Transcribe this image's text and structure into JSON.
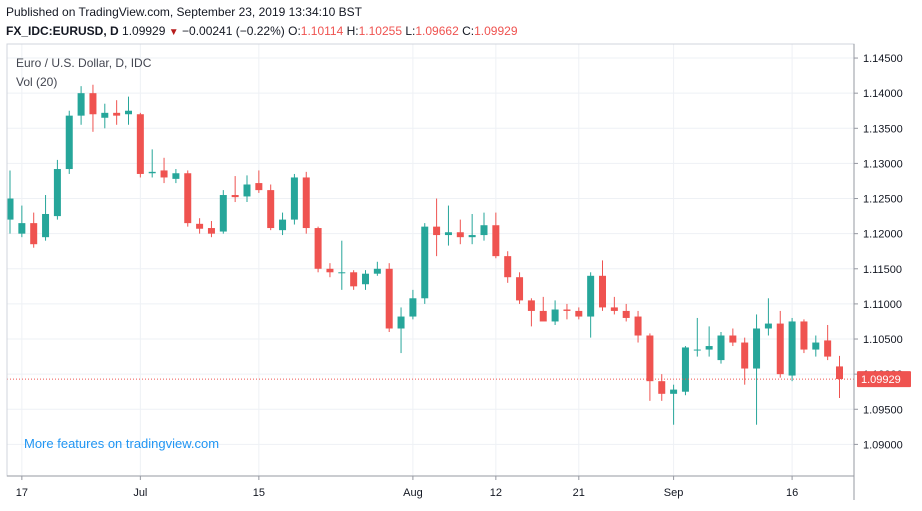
{
  "header": {
    "published": "Published on TradingView.com, September 23, 2019 13:34:10 BST",
    "symbol": "FX_IDC:EURUSD, D",
    "last": "1.09929",
    "change": "−0.00241 (−0.22%)",
    "o_label": "O:",
    "o_val": "1.10114",
    "h_label": "H:",
    "h_val": "1.10255",
    "l_label": "L:",
    "l_val": "1.09662",
    "c_label": "C:",
    "c_val": "1.09929"
  },
  "legend": {
    "title": "Euro / U.S. Dollar, D, IDC",
    "volume": "Vol (20)"
  },
  "promo": "More features on tradingview.com",
  "colors": {
    "up": "#26a69a",
    "down": "#ef5350",
    "grid": "#eef1f5",
    "axis_text": "#131722",
    "price_line": "#ef5350"
  },
  "chart_data": {
    "type": "candlestick",
    "title": "Euro / U.S. Dollar, D, IDC",
    "ylim": [
      1.0855,
      1.147
    ],
    "y_ticks": [
      "1.14500",
      "1.14000",
      "1.13500",
      "1.13000",
      "1.12500",
      "1.12000",
      "1.11500",
      "1.11000",
      "1.10500",
      "1.10000",
      "1.09500",
      "1.09000"
    ],
    "x_ticks": [
      {
        "label": "17",
        "index": 1
      },
      {
        "label": "Jul",
        "index": 11
      },
      {
        "label": "15",
        "index": 21
      },
      {
        "label": "Aug",
        "index": 34
      },
      {
        "label": "12",
        "index": 41
      },
      {
        "label": "21",
        "index": 48
      },
      {
        "label": "Sep",
        "index": 56
      },
      {
        "label": "16",
        "index": 66
      }
    ],
    "last_price": "1.09929",
    "last_value": 1.09929,
    "candles": [
      {
        "o": 1.122,
        "h": 1.129,
        "l": 1.12,
        "c": 1.125
      },
      {
        "o": 1.12,
        "h": 1.124,
        "l": 1.1195,
        "c": 1.1215
      },
      {
        "o": 1.1215,
        "h": 1.123,
        "l": 1.118,
        "c": 1.1185
      },
      {
        "o": 1.1195,
        "h": 1.1255,
        "l": 1.119,
        "c": 1.1228
      },
      {
        "o": 1.1225,
        "h": 1.1305,
        "l": 1.122,
        "c": 1.1292
      },
      {
        "o": 1.1292,
        "h": 1.1375,
        "l": 1.1285,
        "c": 1.1368
      },
      {
        "o": 1.1368,
        "h": 1.141,
        "l": 1.1355,
        "c": 1.14
      },
      {
        "o": 1.14,
        "h": 1.1412,
        "l": 1.1345,
        "c": 1.137
      },
      {
        "o": 1.1365,
        "h": 1.1385,
        "l": 1.135,
        "c": 1.1372
      },
      {
        "o": 1.1372,
        "h": 1.139,
        "l": 1.1355,
        "c": 1.1368
      },
      {
        "o": 1.137,
        "h": 1.1395,
        "l": 1.1355,
        "c": 1.1375
      },
      {
        "o": 1.137,
        "h": 1.1372,
        "l": 1.128,
        "c": 1.1285
      },
      {
        "o": 1.1286,
        "h": 1.132,
        "l": 1.128,
        "c": 1.1288
      },
      {
        "o": 1.129,
        "h": 1.1308,
        "l": 1.1272,
        "c": 1.128
      },
      {
        "o": 1.1278,
        "h": 1.1292,
        "l": 1.1272,
        "c": 1.1286
      },
      {
        "o": 1.1286,
        "h": 1.129,
        "l": 1.121,
        "c": 1.1215
      },
      {
        "o": 1.1214,
        "h": 1.1222,
        "l": 1.12,
        "c": 1.1207
      },
      {
        "o": 1.1208,
        "h": 1.1218,
        "l": 1.1195,
        "c": 1.12
      },
      {
        "o": 1.1203,
        "h": 1.1262,
        "l": 1.12,
        "c": 1.1255
      },
      {
        "o": 1.1255,
        "h": 1.1282,
        "l": 1.1245,
        "c": 1.1252
      },
      {
        "o": 1.1253,
        "h": 1.1283,
        "l": 1.1245,
        "c": 1.127
      },
      {
        "o": 1.1272,
        "h": 1.129,
        "l": 1.1258,
        "c": 1.1262
      },
      {
        "o": 1.1262,
        "h": 1.127,
        "l": 1.1205,
        "c": 1.1208
      },
      {
        "o": 1.1205,
        "h": 1.123,
        "l": 1.1198,
        "c": 1.122
      },
      {
        "o": 1.122,
        "h": 1.1285,
        "l": 1.1213,
        "c": 1.128
      },
      {
        "o": 1.128,
        "h": 1.1288,
        "l": 1.12,
        "c": 1.1208
      },
      {
        "o": 1.1208,
        "h": 1.121,
        "l": 1.1145,
        "c": 1.115
      },
      {
        "o": 1.115,
        "h": 1.1158,
        "l": 1.1138,
        "c": 1.1145
      },
      {
        "o": 1.1145,
        "h": 1.119,
        "l": 1.112,
        "c": 1.1145
      },
      {
        "o": 1.1145,
        "h": 1.1148,
        "l": 1.112,
        "c": 1.1125
      },
      {
        "o": 1.1128,
        "h": 1.1148,
        "l": 1.112,
        "c": 1.1143
      },
      {
        "o": 1.1143,
        "h": 1.116,
        "l": 1.114,
        "c": 1.115
      },
      {
        "o": 1.115,
        "h": 1.1158,
        "l": 1.106,
        "c": 1.1065
      },
      {
        "o": 1.1065,
        "h": 1.1095,
        "l": 1.103,
        "c": 1.1082
      },
      {
        "o": 1.1082,
        "h": 1.112,
        "l": 1.1078,
        "c": 1.1108
      },
      {
        "o": 1.1108,
        "h": 1.1215,
        "l": 1.11,
        "c": 1.121
      },
      {
        "o": 1.121,
        "h": 1.125,
        "l": 1.1168,
        "c": 1.1198
      },
      {
        "o": 1.1198,
        "h": 1.124,
        "l": 1.1183,
        "c": 1.1202
      },
      {
        "o": 1.1202,
        "h": 1.122,
        "l": 1.1185,
        "c": 1.1195
      },
      {
        "o": 1.1195,
        "h": 1.1228,
        "l": 1.1185,
        "c": 1.1198
      },
      {
        "o": 1.1198,
        "h": 1.123,
        "l": 1.119,
        "c": 1.1212
      },
      {
        "o": 1.1212,
        "h": 1.123,
        "l": 1.1165,
        "c": 1.1168
      },
      {
        "o": 1.1168,
        "h": 1.1175,
        "l": 1.113,
        "c": 1.1138
      },
      {
        "o": 1.1138,
        "h": 1.1145,
        "l": 1.11,
        "c": 1.1105
      },
      {
        "o": 1.1105,
        "h": 1.1108,
        "l": 1.1068,
        "c": 1.109
      },
      {
        "o": 1.109,
        "h": 1.111,
        "l": 1.108,
        "c": 1.1075
      },
      {
        "o": 1.1075,
        "h": 1.1105,
        "l": 1.107,
        "c": 1.1092
      },
      {
        "o": 1.1092,
        "h": 1.11,
        "l": 1.1078,
        "c": 1.109
      },
      {
        "o": 1.109,
        "h": 1.1095,
        "l": 1.1078,
        "c": 1.1082
      },
      {
        "o": 1.1082,
        "h": 1.1145,
        "l": 1.1052,
        "c": 1.114
      },
      {
        "o": 1.114,
        "h": 1.1162,
        "l": 1.109,
        "c": 1.1095
      },
      {
        "o": 1.1095,
        "h": 1.111,
        "l": 1.1085,
        "c": 1.109
      },
      {
        "o": 1.109,
        "h": 1.11,
        "l": 1.1075,
        "c": 1.108
      },
      {
        "o": 1.1082,
        "h": 1.109,
        "l": 1.1045,
        "c": 1.1055
      },
      {
        "o": 1.1055,
        "h": 1.1058,
        "l": 1.0962,
        "c": 1.099
      },
      {
        "o": 1.099,
        "h": 1.1,
        "l": 1.0962,
        "c": 1.0972
      },
      {
        "o": 1.0972,
        "h": 1.0985,
        "l": 1.0928,
        "c": 1.0978
      },
      {
        "o": 1.0975,
        "h": 1.104,
        "l": 1.097,
        "c": 1.1038
      },
      {
        "o": 1.1035,
        "h": 1.108,
        "l": 1.1025,
        "c": 1.1035
      },
      {
        "o": 1.1035,
        "h": 1.1068,
        "l": 1.1025,
        "c": 1.104
      },
      {
        "o": 1.102,
        "h": 1.106,
        "l": 1.1015,
        "c": 1.1055
      },
      {
        "o": 1.1055,
        "h": 1.1065,
        "l": 1.104,
        "c": 1.1045
      },
      {
        "o": 1.1045,
        "h": 1.1052,
        "l": 1.0985,
        "c": 1.1008
      },
      {
        "o": 1.1008,
        "h": 1.1085,
        "l": 1.0928,
        "c": 1.1065
      },
      {
        "o": 1.1065,
        "h": 1.1108,
        "l": 1.1055,
        "c": 1.1072
      },
      {
        "o": 1.1072,
        "h": 1.109,
        "l": 1.0995,
        "c": 1.1
      },
      {
        "o": 1.0998,
        "h": 1.108,
        "l": 1.099,
        "c": 1.1075
      },
      {
        "o": 1.1075,
        "h": 1.1078,
        "l": 1.103,
        "c": 1.1035
      },
      {
        "o": 1.1035,
        "h": 1.1055,
        "l": 1.1025,
        "c": 1.1045
      },
      {
        "o": 1.1048,
        "h": 1.107,
        "l": 1.102,
        "c": 1.1025
      },
      {
        "o": 1.1011,
        "h": 1.1026,
        "l": 1.0966,
        "c": 1.0993
      }
    ]
  }
}
